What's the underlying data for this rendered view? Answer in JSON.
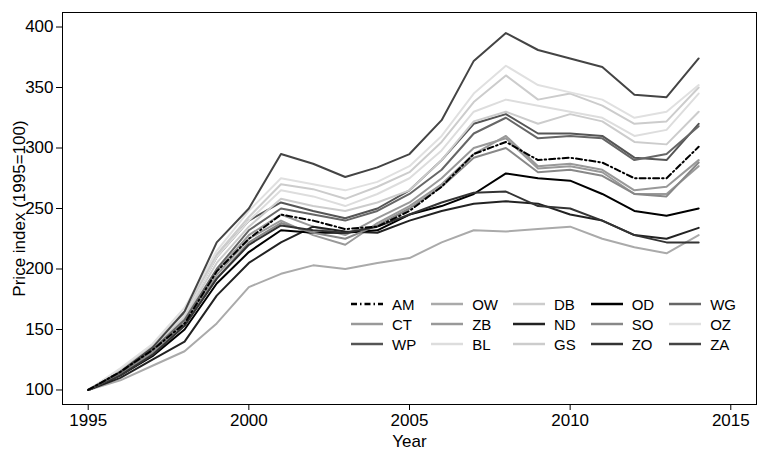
{
  "chart_data": {
    "type": "line",
    "xlabel": "Year",
    "ylabel": "Price index (1995=100)",
    "x": [
      1995,
      1996,
      1997,
      1998,
      1999,
      2000,
      2001,
      2002,
      2003,
      2004,
      2005,
      2006,
      2007,
      2008,
      2009,
      2010,
      2011,
      2012,
      2013,
      2014
    ],
    "xlim": [
      1994.2,
      2015.8
    ],
    "xticks": [
      1995,
      2000,
      2005,
      2010,
      2015
    ],
    "ylim": [
      88,
      412
    ],
    "yticks": [
      100,
      150,
      200,
      250,
      300,
      350,
      400
    ],
    "grid": false,
    "legend": "bottom-right",
    "series": [
      {
        "name": "AM",
        "color": "#000000",
        "line_style": "dashed",
        "values": [
          100,
          115,
          133,
          155,
          198,
          225,
          245,
          240,
          233,
          235,
          248,
          268,
          295,
          305,
          290,
          292,
          288,
          275,
          275,
          301
        ]
      },
      {
        "name": "CT",
        "color": "#999999",
        "line_style": "solid",
        "values": [
          100,
          113,
          130,
          155,
          195,
          225,
          240,
          228,
          220,
          238,
          252,
          270,
          295,
          310,
          285,
          287,
          282,
          265,
          268,
          290
        ]
      },
      {
        "name": "WP",
        "color": "#555555",
        "line_style": "solid",
        "values": [
          100,
          115,
          135,
          163,
          210,
          240,
          255,
          248,
          242,
          250,
          265,
          290,
          320,
          328,
          312,
          312,
          310,
          292,
          290,
          320
        ]
      },
      {
        "name": "OW",
        "color": "#aaaaaa",
        "line_style": "solid",
        "values": [
          100,
          108,
          120,
          132,
          155,
          185,
          196,
          203,
          200,
          205,
          209,
          222,
          232,
          231,
          233,
          235,
          225,
          218,
          213,
          228
        ]
      },
      {
        "name": "ZB",
        "color": "#999999",
        "line_style": "solid",
        "values": [
          100,
          114,
          131,
          156,
          198,
          228,
          245,
          235,
          228,
          242,
          255,
          275,
          300,
          308,
          283,
          285,
          280,
          262,
          262,
          285
        ]
      },
      {
        "name": "BL",
        "color": "#dddddd",
        "line_style": "solid",
        "values": [
          100,
          116,
          135,
          162,
          210,
          240,
          265,
          260,
          252,
          262,
          275,
          298,
          330,
          340,
          335,
          330,
          325,
          310,
          315,
          345
        ]
      },
      {
        "name": "DB",
        "color": "#cccccc",
        "line_style": "solid",
        "values": [
          100,
          115,
          134,
          160,
          205,
          235,
          258,
          252,
          248,
          255,
          265,
          290,
          322,
          330,
          320,
          328,
          322,
          305,
          303,
          330
        ]
      },
      {
        "name": "ND",
        "color": "#222222",
        "line_style": "solid",
        "values": [
          100,
          110,
          125,
          140,
          178,
          205,
          222,
          235,
          231,
          230,
          240,
          248,
          254,
          256,
          254,
          245,
          240,
          228,
          225,
          234
        ]
      },
      {
        "name": "GS",
        "color": "#cccccc",
        "line_style": "solid",
        "values": [
          100,
          117,
          137,
          165,
          212,
          243,
          270,
          266,
          258,
          268,
          280,
          305,
          338,
          360,
          340,
          345,
          335,
          320,
          322,
          350
        ]
      },
      {
        "name": "OD",
        "color": "#000000",
        "line_style": "solid",
        "values": [
          100,
          112,
          128,
          150,
          188,
          214,
          232,
          230,
          230,
          232,
          245,
          252,
          262,
          279,
          275,
          273,
          262,
          248,
          244,
          250
        ]
      },
      {
        "name": "SO",
        "color": "#888888",
        "line_style": "solid",
        "values": [
          100,
          113,
          130,
          154,
          192,
          222,
          238,
          230,
          225,
          236,
          250,
          268,
          292,
          300,
          280,
          282,
          277,
          262,
          260,
          288
        ]
      },
      {
        "name": "ZO",
        "color": "#333333",
        "line_style": "solid",
        "values": [
          100,
          112,
          129,
          153,
          192,
          220,
          236,
          232,
          230,
          235,
          245,
          255,
          263,
          264,
          252,
          250,
          240,
          228,
          222,
          222
        ]
      },
      {
        "name": "WG",
        "color": "#666666",
        "line_style": "solid",
        "values": [
          100,
          114,
          133,
          158,
          200,
          232,
          250,
          245,
          240,
          248,
          262,
          282,
          312,
          325,
          308,
          310,
          308,
          290,
          295,
          318
        ]
      },
      {
        "name": "OZ",
        "color": "#e0e0e0",
        "line_style": "solid",
        "values": [
          100,
          118,
          138,
          168,
          215,
          248,
          275,
          270,
          265,
          272,
          285,
          310,
          345,
          368,
          352,
          346,
          340,
          325,
          330,
          352
        ]
      },
      {
        "name": "ZA",
        "color": "#444444",
        "line_style": "solid",
        "values": [
          100,
          115,
          135,
          165,
          222,
          250,
          295,
          287,
          276,
          284,
          295,
          323,
          372,
          395,
          381,
          374,
          367,
          344,
          342,
          374
        ]
      }
    ]
  }
}
